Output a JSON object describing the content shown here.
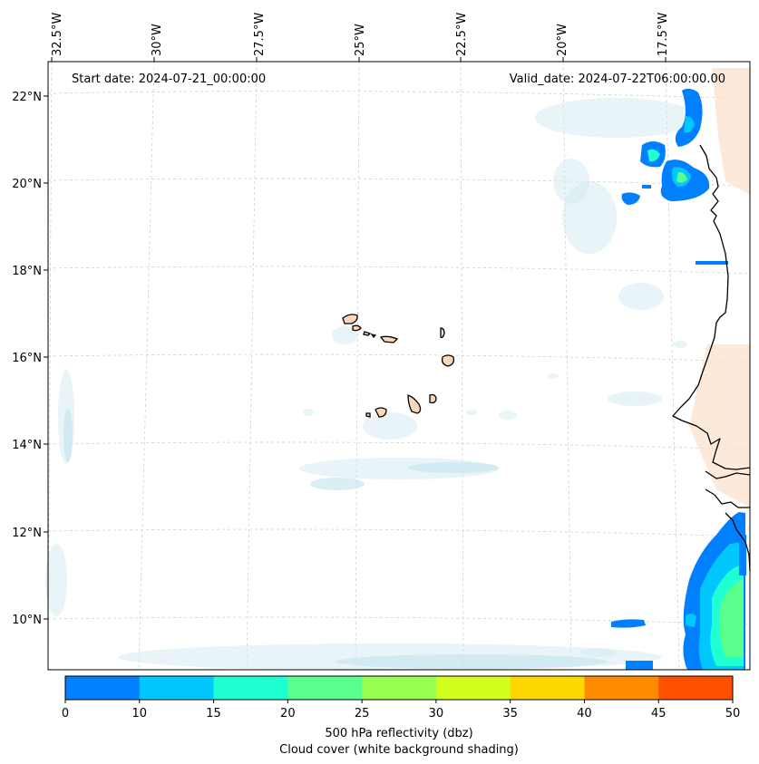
{
  "map": {
    "start_date_text": "Start date: 2024-07-21_00:00:00",
    "valid_date_text": "Valid_date: 2024-07-22T06:00:00.00",
    "lon_labels": [
      "32.5°W",
      "30°W",
      "27.5°W",
      "25°W",
      "22.5°W",
      "20°W",
      "17.5°W"
    ],
    "lat_labels": [
      "22°N",
      "20°N",
      "18°N",
      "16°N",
      "14°N",
      "12°N",
      "10°N"
    ]
  },
  "colorbar": {
    "ticks": [
      "0",
      "10",
      "15",
      "20",
      "25",
      "30",
      "35",
      "40",
      "45",
      "50"
    ],
    "colors": [
      "#0080ff",
      "#00c8ff",
      "#1effd2",
      "#5aff8c",
      "#96ff50",
      "#d2ff1e",
      "#ffd700",
      "#ff8c00",
      "#ff5000"
    ],
    "label_line1": "500 hPa reflectivity (dbz)",
    "label_line2": "Cloud cover (white background shading)"
  }
}
